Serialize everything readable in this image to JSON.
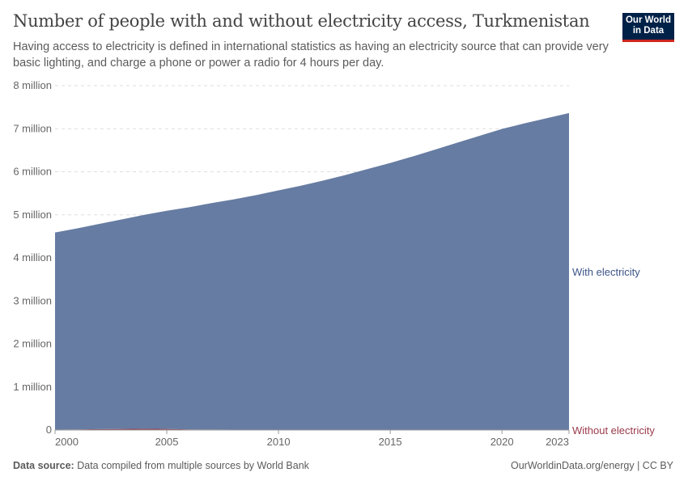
{
  "header": {
    "title": "Number of people with and without electricity access, Turkmenistan",
    "subtitle": "Having access to electricity is defined in international statistics as having an electricity source that can provide very basic lighting, and charge a phone or power a radio for 4 hours per day.",
    "logo_line1": "Our World",
    "logo_line2": "in Data"
  },
  "footer": {
    "source_label": "Data source:",
    "source_text": "Data compiled from multiple sources by World Bank",
    "credit": "OurWorldinData.org/energy | CC BY"
  },
  "chart_data": {
    "type": "area",
    "stacked": true,
    "title": "Number of people with and without electricity access, Turkmenistan",
    "xlabel": "",
    "ylabel": "",
    "x": [
      2000,
      2001,
      2002,
      2003,
      2004,
      2005,
      2006,
      2007,
      2008,
      2009,
      2010,
      2011,
      2012,
      2013,
      2014,
      2015,
      2016,
      2017,
      2018,
      2019,
      2020,
      2021,
      2022,
      2023
    ],
    "xticks": [
      "2000",
      "2005",
      "2010",
      "2015",
      "2020",
      "2023"
    ],
    "xtick_values": [
      2000,
      2005,
      2010,
      2015,
      2020,
      2023
    ],
    "ylim": [
      0,
      8000000
    ],
    "yticks": [
      "0",
      "1 million",
      "2 million",
      "3 million",
      "4 million",
      "5 million",
      "6 million",
      "7 million",
      "8 million"
    ],
    "ytick_values": [
      0,
      1000000,
      2000000,
      3000000,
      4000000,
      5000000,
      6000000,
      7000000,
      8000000
    ],
    "grid": true,
    "legend_placement": "right-inline",
    "series": [
      {
        "name": "Without electricity",
        "color": "#9a3a4a",
        "values": [
          10000,
          15000,
          20000,
          25000,
          30000,
          25000,
          15000,
          12000,
          10000,
          8000,
          8000,
          7000,
          6000,
          5000,
          5000,
          5000,
          5000,
          5000,
          5000,
          6000,
          5000,
          4000,
          4000,
          4000
        ]
      },
      {
        "name": "With electricity",
        "color": "#6379a0",
        "values": [
          4580000,
          4670000,
          4770000,
          4870000,
          4970000,
          5070000,
          5160000,
          5260000,
          5350000,
          5450000,
          5560000,
          5670000,
          5790000,
          5920000,
          6060000,
          6200000,
          6350000,
          6510000,
          6670000,
          6830000,
          6990000,
          7120000,
          7240000,
          7360000
        ]
      }
    ]
  }
}
